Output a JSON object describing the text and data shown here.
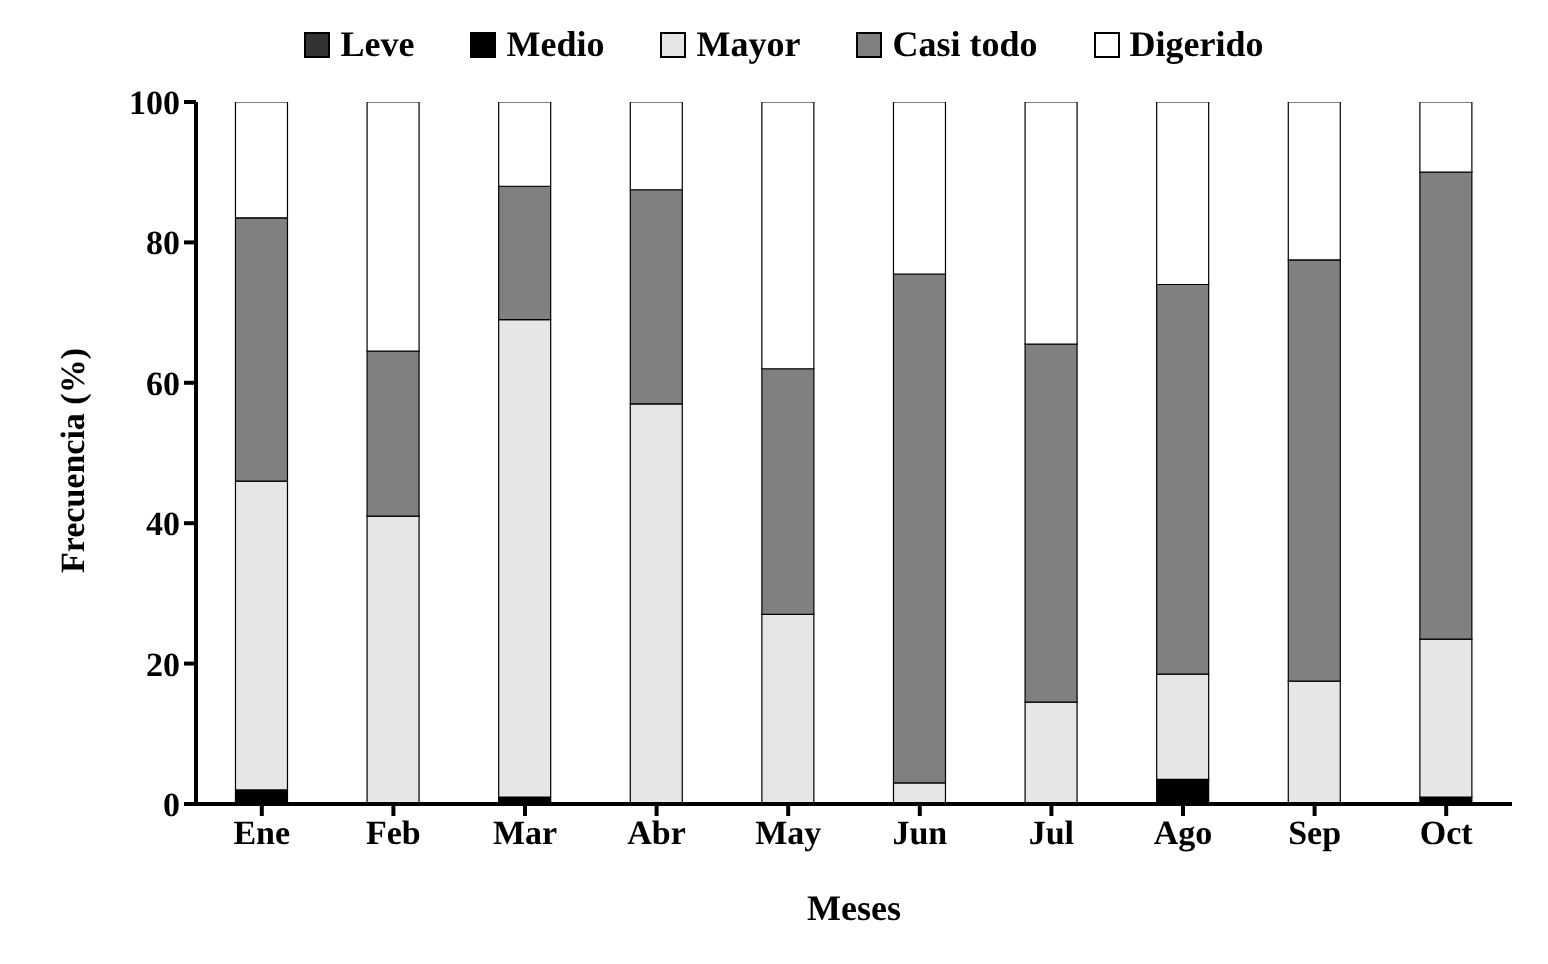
{
  "chart_data": {
    "type": "bar",
    "stacked": true,
    "xlabel": "Meses",
    "ylabel": "Frecuencia (%)",
    "categories": [
      "Ene",
      "Feb",
      "Mar",
      "Abr",
      "May",
      "Jun",
      "Jul",
      "Ago",
      "Sep",
      "Oct"
    ],
    "series": [
      {
        "name": "Leve",
        "color": "#333333",
        "values": [
          0,
          0,
          0,
          0,
          0,
          0,
          0,
          0,
          0,
          0
        ]
      },
      {
        "name": "Medio",
        "color": "#000000",
        "values": [
          2,
          0,
          1,
          0,
          0,
          0,
          0,
          3.5,
          0,
          1
        ]
      },
      {
        "name": "Mayor",
        "color": "#e6e6e6",
        "values": [
          44,
          41,
          68,
          57,
          27,
          3,
          14.5,
          15,
          17.5,
          22.5
        ]
      },
      {
        "name": "Casi todo",
        "color": "#808080",
        "values": [
          37.5,
          23.5,
          19,
          30.5,
          35,
          72.5,
          51,
          55.5,
          60,
          66.5
        ]
      },
      {
        "name": "Digerido",
        "color": "#ffffff",
        "values": [
          16.5,
          35.5,
          12,
          12.5,
          38,
          24.5,
          34.5,
          26,
          22.5,
          10
        ]
      }
    ],
    "ylim": [
      0,
      100
    ],
    "yticks": [
      0,
      20,
      40,
      60,
      80,
      100
    ],
    "grid": false,
    "legend": "top"
  }
}
